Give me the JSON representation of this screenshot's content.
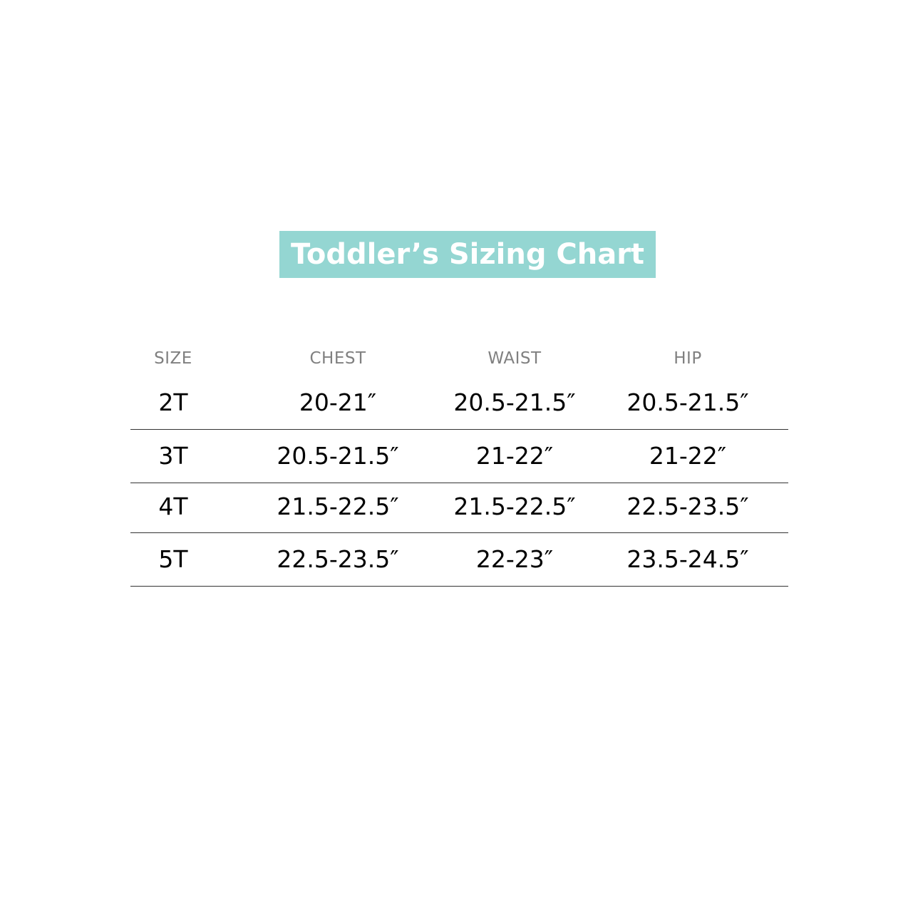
{
  "title": "Toddler’s Sizing Chart",
  "colors": {
    "title_bg": "#94d6d2",
    "header_text": "#808080",
    "body_text": "#000000"
  },
  "table": {
    "headers": [
      "SIZE",
      "CHEST",
      "WAIST",
      "HIP"
    ],
    "rows": [
      [
        "2T",
        "20-21″",
        "20.5-21.5″",
        "20.5-21.5″"
      ],
      [
        "3T",
        "20.5-21.5″",
        "21-22″",
        "21-22″"
      ],
      [
        "4T",
        "21.5-22.5″",
        "21.5-22.5″",
        "22.5-23.5″"
      ],
      [
        "5T",
        "22.5-23.5″",
        "22-23″",
        "23.5-24.5″"
      ]
    ]
  }
}
